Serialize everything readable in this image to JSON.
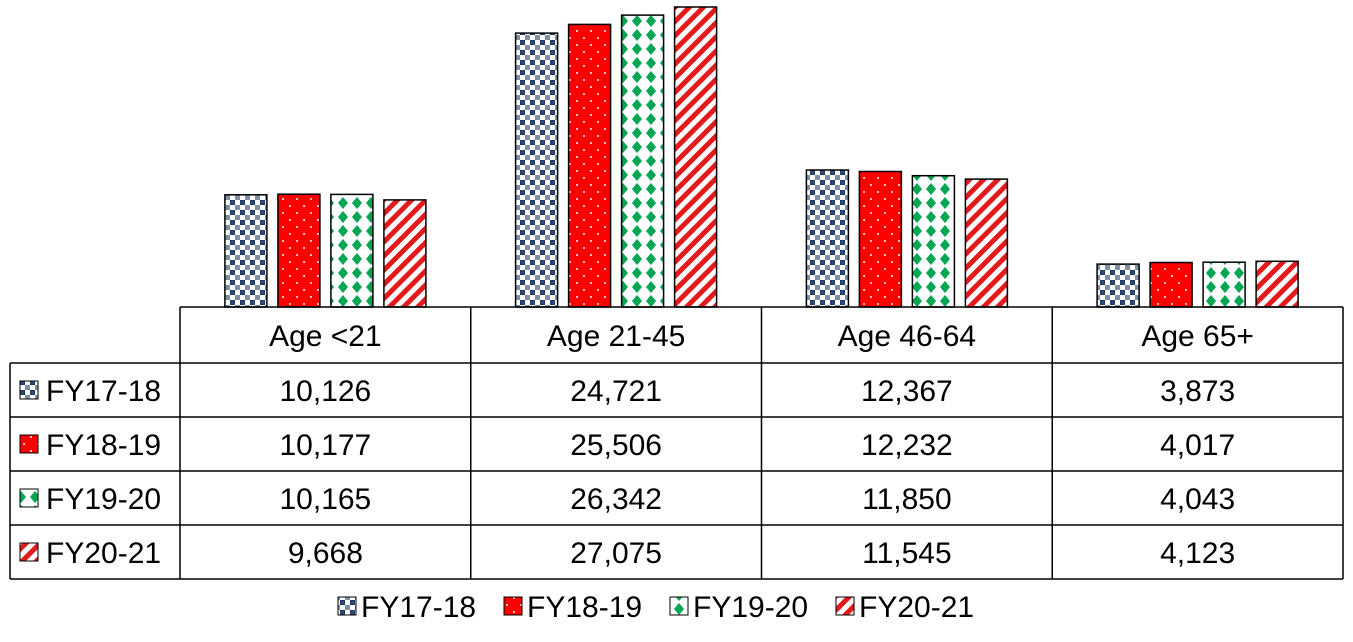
{
  "chart_data": {
    "type": "bar",
    "categories": [
      "Age <21",
      "Age 21-45",
      "Age 46-64",
      "Age 65+"
    ],
    "series": [
      {
        "name": "FY17-18",
        "values": [
          10126,
          24721,
          12367,
          3873
        ],
        "labels": [
          "10,126",
          "24,721",
          "12,367",
          "3,873"
        ],
        "pattern": "checker",
        "color": "#1f3864"
      },
      {
        "name": "FY18-19",
        "values": [
          10177,
          25506,
          12232,
          4017
        ],
        "labels": [
          "10,177",
          "25,506",
          "12,232",
          "4,017"
        ],
        "pattern": "dots",
        "color": "#ff0000"
      },
      {
        "name": "FY19-20",
        "values": [
          10165,
          26342,
          11850,
          4043
        ],
        "labels": [
          "10,165",
          "26,342",
          "11,850",
          "4,043"
        ],
        "pattern": "diamonds",
        "color": "#00a651"
      },
      {
        "name": "FY20-21",
        "values": [
          9668,
          27075,
          11545,
          4123
        ],
        "labels": [
          "9,668",
          "27,075",
          "11,545",
          "4,123"
        ],
        "pattern": "stripes",
        "color": "#e31a1c"
      }
    ],
    "title": "",
    "xlabel": "",
    "ylabel": "",
    "ylim": [
      0,
      27075
    ],
    "grid": false,
    "legend": "bottom",
    "data_table": true
  }
}
